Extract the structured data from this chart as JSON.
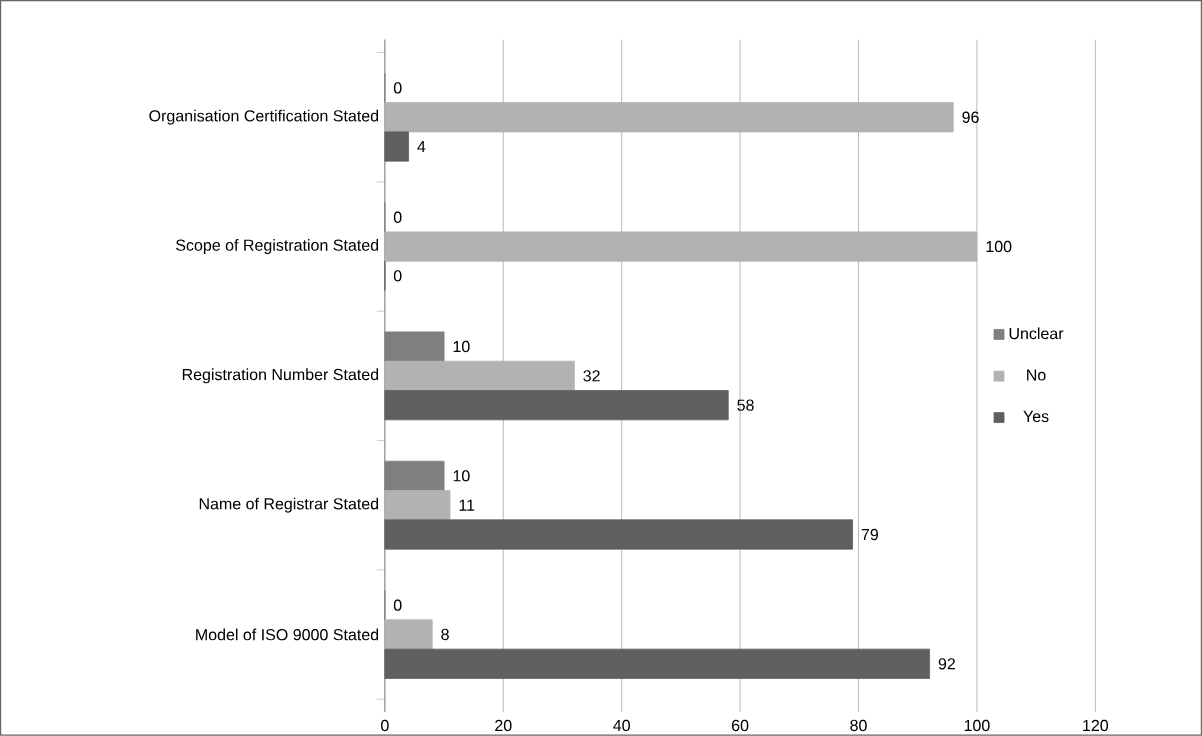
{
  "chart_data": {
    "type": "bar",
    "orientation": "horizontal",
    "categories": [
      "Organisation Certification Stated",
      "Scope of Registration Stated",
      "Registration Number Stated",
      "Name of Registrar Stated",
      "Model of ISO 9000 Stated"
    ],
    "series": [
      {
        "name": "Unclear",
        "color": "#7f7f7f",
        "values": [
          0,
          0,
          10,
          10,
          0
        ]
      },
      {
        "name": "No",
        "color": "#b2b2b2",
        "values": [
          96,
          100,
          32,
          11,
          8
        ]
      },
      {
        "name": "Yes",
        "color": "#5f5f5f",
        "values": [
          4,
          0,
          58,
          79,
          92
        ]
      }
    ],
    "xlim": [
      0,
      120
    ],
    "xticks": [
      0,
      20,
      40,
      60,
      80,
      100,
      120
    ],
    "grid": "x",
    "legend": "right",
    "data_labels": true
  }
}
